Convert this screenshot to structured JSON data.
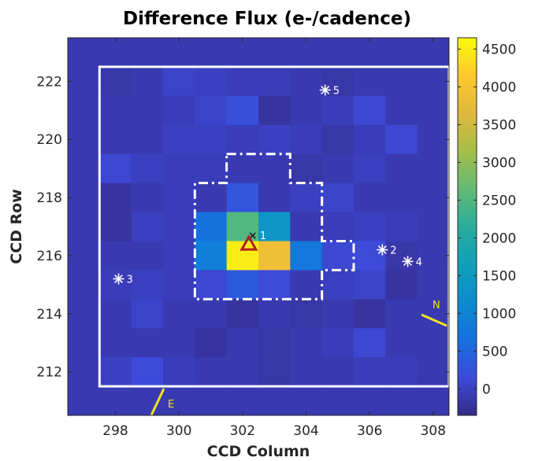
{
  "chart_data": {
    "type": "heatmap",
    "title": "Difference Flux (e-/cadence)",
    "xlabel": "CCD Column",
    "ylabel": "CCD Row",
    "x_ticks": [
      298,
      300,
      302,
      304,
      306,
      308
    ],
    "y_ticks": [
      212,
      214,
      216,
      218,
      220,
      222
    ],
    "colorbar_ticks": [
      0,
      500,
      1000,
      1500,
      2000,
      2500,
      3000,
      3500,
      4000,
      4500
    ],
    "colorbar_range": [
      -350,
      4650
    ],
    "colormap": "parula",
    "x_centers": [
      297,
      298,
      299,
      300,
      301,
      302,
      303,
      304,
      305,
      306,
      307,
      308
    ],
    "y_centers": [
      223,
      222,
      221,
      220,
      219,
      218,
      217,
      216,
      215,
      214,
      213,
      212,
      211
    ],
    "flux": [
      [
        -100,
        -100,
        -100,
        -100,
        -100,
        -100,
        -100,
        -100,
        -100,
        -100,
        -100,
        -100
      ],
      [
        -100,
        -150,
        -100,
        50,
        0,
        -50,
        -50,
        -100,
        -150,
        -100,
        -100,
        -100
      ],
      [
        -100,
        -100,
        -100,
        -50,
        50,
        200,
        -200,
        -100,
        -50,
        100,
        -100,
        -100
      ],
      [
        -100,
        -100,
        -100,
        0,
        0,
        -50,
        0,
        -50,
        -150,
        -50,
        100,
        -100
      ],
      [
        -100,
        100,
        0,
        -50,
        -50,
        -100,
        -100,
        -150,
        -100,
        0,
        -100,
        -100
      ],
      [
        -100,
        -200,
        -100,
        -50,
        -100,
        300,
        -100,
        0,
        50,
        -100,
        -100,
        -100
      ],
      [
        -100,
        -200,
        0,
        -50,
        700,
        2500,
        1400,
        -100,
        -50,
        0,
        -50,
        -100
      ],
      [
        -100,
        -100,
        -100,
        -50,
        900,
        4500,
        3900,
        800,
        100,
        150,
        -150,
        -100
      ],
      [
        -100,
        -50,
        0,
        -50,
        100,
        350,
        150,
        -100,
        0,
        50,
        -200,
        -100
      ],
      [
        -100,
        -100,
        50,
        -100,
        -100,
        -200,
        -100,
        -150,
        -100,
        -200,
        -100,
        -100
      ],
      [
        -100,
        -100,
        -100,
        -100,
        -200,
        -100,
        -150,
        -100,
        -50,
        100,
        -100,
        -100
      ],
      [
        -100,
        0,
        150,
        -50,
        -100,
        -100,
        -150,
        -100,
        -100,
        -50,
        -50,
        -100
      ],
      [
        -100,
        -100,
        -100,
        -100,
        -100,
        -100,
        -100,
        -100,
        -100,
        -100,
        -100,
        -100
      ]
    ],
    "stars": [
      {
        "label": "1",
        "col": 302.3,
        "row": 216.7
      },
      {
        "label": "2",
        "col": 306.4,
        "row": 216.2
      },
      {
        "label": "3",
        "col": 298.1,
        "row": 215.2
      },
      {
        "label": "4",
        "col": 307.2,
        "row": 215.8
      },
      {
        "label": "5",
        "col": 304.6,
        "row": 221.7
      }
    ],
    "centroid_triangle": {
      "col": 302.2,
      "row": 216.4
    },
    "compass": {
      "north_label": "N",
      "east_label": "E"
    }
  }
}
